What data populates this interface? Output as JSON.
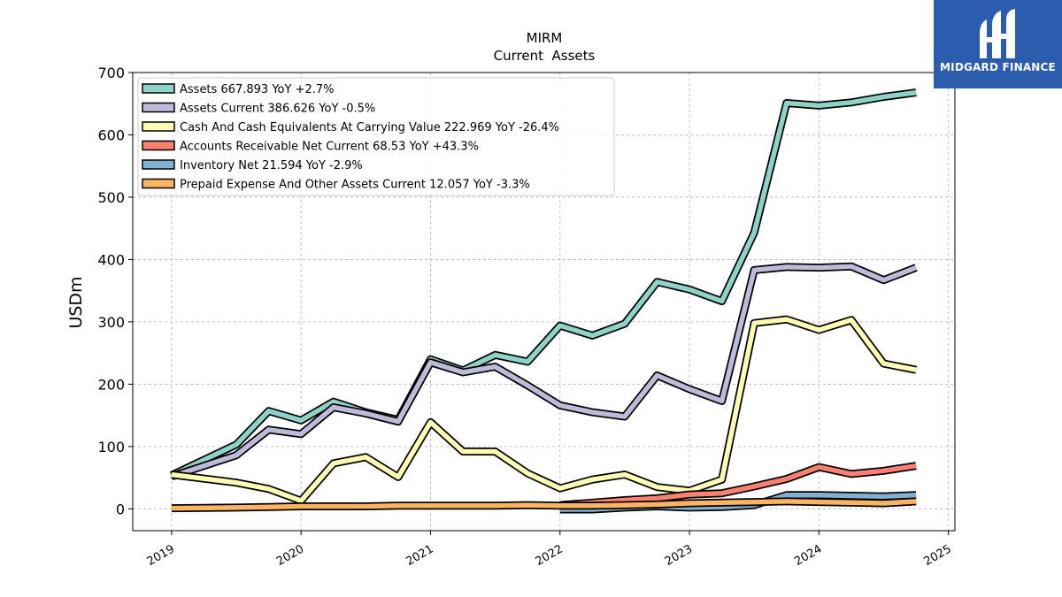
{
  "brand": {
    "name": "MIDGARD FINANCE",
    "bg_color": "#2b5cad"
  },
  "chart_data": {
    "type": "line",
    "title": "MIRM",
    "subtitle": "Current  Assets",
    "ylabel": "USDm",
    "xlabel": "",
    "ylim": [
      -35,
      700
    ],
    "xlim": [
      2018.7,
      2025.05
    ],
    "yticks": [
      0,
      100,
      200,
      300,
      400,
      500,
      600,
      700
    ],
    "xticks": [
      "2019",
      "2020",
      "2021",
      "2022",
      "2023",
      "2024",
      "2025"
    ],
    "grid": true,
    "legend_position": "top-left",
    "series": [
      {
        "name": "Assets",
        "legend": "Assets  667.893 YoY +2.7%",
        "color": "#8dd3c7",
        "x": [
          2019.0,
          2019.5,
          2019.75,
          2020.0,
          2020.25,
          2020.5,
          2020.75,
          2021.0,
          2021.25,
          2021.5,
          2021.75,
          2022.0,
          2022.25,
          2022.5,
          2022.75,
          2023.0,
          2023.25,
          2023.5,
          2023.75,
          2024.0,
          2024.25,
          2024.5,
          2024.75
        ],
        "y": [
          54,
          103,
          157,
          142,
          172,
          155,
          143,
          240,
          222,
          247,
          236,
          294,
          278,
          297,
          364,
          352,
          333,
          443,
          651,
          647,
          652,
          661,
          668
        ]
      },
      {
        "name": "Assets Current",
        "legend": "Assets Current  386.626 YoY -0.5%",
        "color": "#bebada",
        "x": [
          2019.0,
          2019.5,
          2019.75,
          2020.0,
          2020.25,
          2020.5,
          2020.75,
          2021.0,
          2021.25,
          2021.5,
          2021.75,
          2022.0,
          2022.25,
          2022.5,
          2022.75,
          2023.0,
          2023.25,
          2023.5,
          2023.75,
          2024.0,
          2024.25,
          2024.5,
          2024.75
        ],
        "y": [
          52,
          86,
          127,
          120,
          163,
          153,
          140,
          235,
          219,
          228,
          198,
          166,
          155,
          148,
          214,
          192,
          173,
          383,
          388,
          387,
          389,
          367,
          387
        ]
      },
      {
        "name": "Cash And Cash Equivalents At Carrying Value",
        "legend": "Cash And Cash Equivalents At Carrying Value  222.969 YoY -26.4%",
        "color": "#ffffb3",
        "x": [
          2019.0,
          2019.5,
          2019.75,
          2020.0,
          2020.25,
          2020.5,
          2020.75,
          2021.0,
          2021.25,
          2021.5,
          2021.75,
          2022.0,
          2022.25,
          2022.5,
          2022.75,
          2023.0,
          2023.25,
          2023.5,
          2023.75,
          2024.0,
          2024.25,
          2024.5,
          2024.75
        ],
        "y": [
          55,
          42,
          32,
          13,
          73,
          83,
          51,
          139,
          92,
          92,
          57,
          33,
          47,
          55,
          35,
          29,
          47,
          298,
          304,
          287,
          303,
          233,
          223
        ]
      },
      {
        "name": "Accounts Receivable Net Current",
        "legend": "Accounts Receivable Net Current  68.53 YoY +43.3%",
        "color": "#fb8072",
        "x": [
          2022.0,
          2022.25,
          2022.5,
          2022.75,
          2023.0,
          2023.25,
          2023.5,
          2023.75,
          2024.0,
          2024.25,
          2024.5,
          2024.75
        ],
        "y": [
          6,
          10,
          14,
          17,
          23,
          25,
          36,
          48,
          67,
          56,
          61,
          69
        ]
      },
      {
        "name": "Inventory Net",
        "legend": "Inventory Net  21.594 YoY -2.9%",
        "color": "#80b1d3",
        "x": [
          2022.0,
          2022.25,
          2022.5,
          2022.75,
          2023.0,
          2023.25,
          2023.5,
          2023.75,
          2024.0,
          2024.25,
          2024.5,
          2024.75
        ],
        "y": [
          -1,
          -1,
          2,
          4,
          2,
          3,
          6,
          22,
          22,
          21,
          20,
          22
        ]
      },
      {
        "name": "Prepaid Expense And Other Assets Current",
        "legend": "Prepaid Expense And Other Assets Current  12.057 YoY -3.3%",
        "color": "#fdb462",
        "x": [
          2019.0,
          2019.5,
          2019.75,
          2020.0,
          2020.25,
          2020.5,
          2020.75,
          2021.0,
          2021.25,
          2021.5,
          2021.75,
          2022.0,
          2022.25,
          2022.5,
          2022.75,
          2023.0,
          2023.25,
          2023.5,
          2023.75,
          2024.0,
          2024.25,
          2024.5,
          2024.75
        ],
        "y": [
          1,
          2,
          3,
          4,
          4,
          4,
          5,
          5,
          5,
          5,
          6,
          5,
          5,
          6,
          7,
          9,
          10,
          11,
          12,
          11,
          10,
          9,
          12
        ]
      }
    ]
  }
}
